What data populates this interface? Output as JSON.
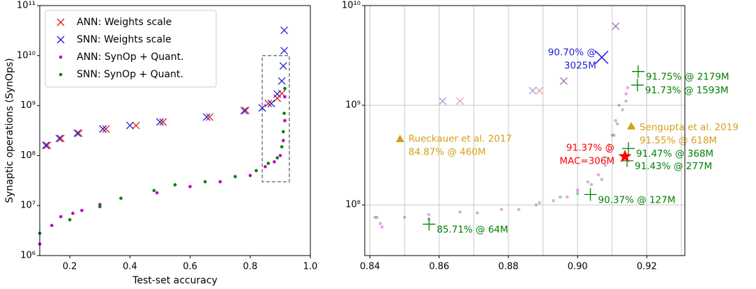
{
  "chart_data": [
    {
      "type": "scatter",
      "xlabel": "Test-set accuracy",
      "ylabel": "Synaptic operations (SynOps)",
      "xlim": [
        0.1,
        1.0
      ],
      "xticks": [
        0.2,
        0.4,
        0.6,
        0.8,
        {
          "value": 1.0,
          "label": "1.0"
        }
      ],
      "ylim": [
        1000000,
        100000000000
      ],
      "yticks": [
        {
          "value": 1000000,
          "label": "10⁶"
        },
        {
          "value": 10000000,
          "label": "10⁷"
        },
        {
          "value": 100000000,
          "label": "10⁸"
        },
        {
          "value": 1000000000,
          "label": "10⁹"
        },
        {
          "value": 10000000000,
          "label": "10¹⁰"
        },
        {
          "value": 100000000000,
          "label": "10¹¹"
        }
      ],
      "log_y": true,
      "grid": false,
      "legend": "upper-left",
      "highlight_box": {
        "x": [
          0.84,
          0.93
        ],
        "y": [
          30000000,
          10000000000
        ]
      },
      "series": [
        {
          "name": "ANN: Weights scale",
          "color": "#e41a1c",
          "marker": "x",
          "x": [
            0.125,
            0.17,
            0.23,
            0.32,
            0.42,
            0.51,
            0.665,
            0.785,
            0.86,
            0.89,
            0.905
          ],
          "values": [
            160000000,
            220000000,
            280000000,
            340000000,
            400000000,
            470000000,
            590000000,
            800000000,
            1100000000,
            1400000000,
            1750000000
          ]
        },
        {
          "name": "SNN: Weights scale",
          "color": "#1f1fd6",
          "marker": "x",
          "x": [
            0.12,
            0.165,
            0.225,
            0.31,
            0.4,
            0.5,
            0.655,
            0.78,
            0.84,
            0.87,
            0.89,
            0.905,
            0.91,
            0.913,
            0.913
          ],
          "values": [
            160000000,
            220000000,
            280000000,
            340000000,
            400000000,
            470000000,
            590000000,
            790000000,
            900000000,
            1100000000,
            1700000000,
            3100000000,
            6200000000,
            12500000000,
            32000000000
          ]
        },
        {
          "name": "ANN: SynOp + Quant.",
          "color": "#bf00bf",
          "marker": "o",
          "x": [
            0.1,
            0.14,
            0.17,
            0.21,
            0.24,
            0.3,
            0.49,
            0.6,
            0.7,
            0.8,
            0.85,
            0.88,
            0.9,
            0.91,
            0.915,
            0.915
          ],
          "values": [
            1700000,
            4000000,
            6000000,
            7000000,
            8000000,
            10500000,
            18000000,
            24000000,
            30000000,
            40000000,
            60000000,
            75000000,
            100000000,
            200000000,
            500000000,
            1500000000
          ]
        },
        {
          "name": "SNN: SynOp + Quant.",
          "color": "#008000",
          "marker": "o",
          "x": [
            0.1,
            0.2,
            0.3,
            0.37,
            0.48,
            0.55,
            0.65,
            0.75,
            0.82,
            0.86,
            0.89,
            0.905,
            0.91,
            0.913,
            0.915
          ],
          "values": [
            2800000,
            5200000,
            9500000,
            14000000,
            20000000,
            26000000,
            30000000,
            38000000,
            50000000,
            70000000,
            90000000,
            150000000,
            300000000,
            700000000,
            2200000000
          ]
        }
      ]
    },
    {
      "type": "scatter",
      "xlim": [
        0.8385,
        0.931
      ],
      "xticks": [
        0.84,
        0.86,
        0.88,
        {
          "value": 0.9,
          "label": "0.90"
        },
        0.92
      ],
      "xminorticks": [
        0.85,
        0.87,
        0.89,
        0.91,
        0.93
      ],
      "ylim": [
        31000000,
        10000000000
      ],
      "yticks": [
        {
          "value": 100000000,
          "label": "10⁸"
        },
        {
          "value": 1000000000,
          "label": "10⁹"
        },
        {
          "value": 10000000000,
          "label": "10¹⁰"
        }
      ],
      "log_y": true,
      "grid": true,
      "series": [
        {
          "color": "#e41a1c",
          "marker": "x",
          "alpha": 0.45,
          "x": [
            0.866,
            0.889
          ],
          "values": [
            1100000000,
            1400000000
          ]
        },
        {
          "color": "#1f1fd6",
          "marker": "x",
          "alpha": 0.45,
          "x": [
            0.861,
            0.887
          ],
          "values": [
            1100000000,
            1400000000
          ]
        },
        {
          "color": "#7a2a8c",
          "marker": "x",
          "alpha": 0.7,
          "x": [
            0.896,
            0.911
          ],
          "values": [
            1750000000,
            6200000000
          ]
        },
        {
          "color": "#bf00bf",
          "marker": "o",
          "alpha": 0.35,
          "x": [
            0.842,
            0.843,
            0.8435,
            0.857,
            0.866,
            0.878,
            0.888,
            0.893,
            0.897,
            0.9,
            0.904,
            0.906,
            0.908,
            0.909,
            0.91,
            0.911,
            0.912,
            0.914,
            0.9145
          ],
          "values": [
            75000000,
            65000000,
            60000000,
            80000000,
            85000000,
            90000000,
            100000000,
            110000000,
            120000000,
            140000000,
            160000000,
            200000000,
            250000000,
            350000000,
            500000000,
            700000000,
            1000000000,
            1300000000,
            1500000000
          ]
        },
        {
          "color": "#008000",
          "marker": "o",
          "alpha": 0.35,
          "x": [
            0.8415,
            0.85,
            0.857,
            0.871,
            0.883,
            0.889,
            0.895,
            0.9,
            0.903,
            0.907,
            0.908,
            0.909,
            0.9105,
            0.9115,
            0.913,
            0.914,
            0.916
          ],
          "values": [
            75000000,
            75000000,
            72000000,
            83000000,
            90000000,
            105000000,
            120000000,
            130000000,
            170000000,
            180000000,
            300000000,
            400000000,
            500000000,
            650000000,
            900000000,
            1100000000,
            600000000
          ]
        },
        {
          "color": "#1f1fd6",
          "marker": "X",
          "x": [
            0.907
          ],
          "values": [
            3025000000
          ],
          "annotations": [
            [
              "90.70% @",
              "3025M"
            ]
          ]
        },
        {
          "color": "#008000",
          "marker": "+",
          "x": [
            0.8571,
            0.9037,
            0.9143,
            0.9147,
            0.9173,
            0.9175
          ],
          "values": [
            64000000,
            127000000,
            277000000,
            368000000,
            1593000000,
            2179000000
          ],
          "annotations": [
            [
              "85.71% @ 64M"
            ],
            [
              "90.37% @ 127M"
            ],
            [
              "91.43% @ 277M"
            ],
            [
              "91.47% @ 368M"
            ],
            [
              "91.73% @ 1593M"
            ],
            [
              "91.75% @ 2179M"
            ]
          ]
        },
        {
          "color": "#ff0000",
          "marker": "*",
          "x": [
            0.9137
          ],
          "values": [
            306000000
          ],
          "annotations": [
            [
              "91.37% @",
              "MAC=306M"
            ]
          ]
        },
        {
          "color": "#d4a017",
          "marker": "^",
          "x": [
            0.8487,
            0.9155
          ],
          "values": [
            460000000,
            618000000
          ],
          "annotations": [
            [
              "Rueckauer et al. 2017",
              "84.87% @ 460M"
            ],
            [
              "Sengupta et al. 2019",
              "91.55% @ 618M"
            ]
          ]
        }
      ]
    }
  ]
}
